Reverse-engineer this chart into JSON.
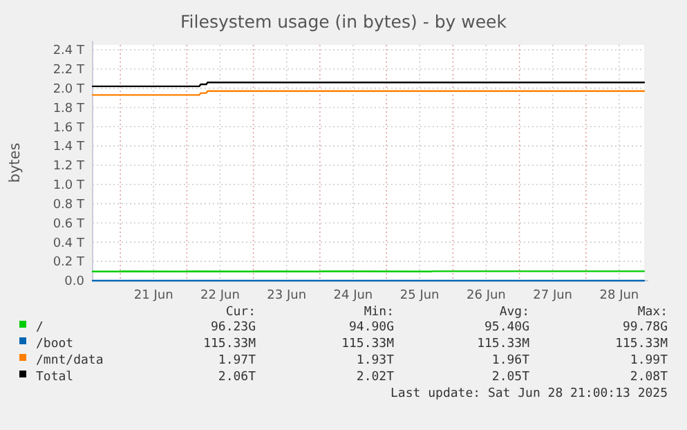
{
  "chart_data": {
    "type": "line",
    "title": "Filesystem usage (in bytes) - by week",
    "ylabel": "bytes",
    "xlim": [
      "2025-06-20T14:00",
      "2025-06-28T21:00"
    ],
    "xticks": [
      {
        "value": "2025-06-21T00:00",
        "label": null
      },
      {
        "value": "2025-06-21T12:00",
        "label": "21 Jun"
      },
      {
        "value": "2025-06-22T00:00",
        "label": null
      },
      {
        "value": "2025-06-22T12:00",
        "label": "22 Jun"
      },
      {
        "value": "2025-06-23T00:00",
        "label": null
      },
      {
        "value": "2025-06-23T12:00",
        "label": "23 Jun"
      },
      {
        "value": "2025-06-24T00:00",
        "label": null
      },
      {
        "value": "2025-06-24T12:00",
        "label": "24 Jun"
      },
      {
        "value": "2025-06-25T00:00",
        "label": null
      },
      {
        "value": "2025-06-25T12:00",
        "label": "25 Jun"
      },
      {
        "value": "2025-06-26T00:00",
        "label": null
      },
      {
        "value": "2025-06-26T12:00",
        "label": "26 Jun"
      },
      {
        "value": "2025-06-27T00:00",
        "label": null
      },
      {
        "value": "2025-06-27T12:00",
        "label": "27 Jun"
      },
      {
        "value": "2025-06-28T00:00",
        "label": null
      },
      {
        "value": "2025-06-28T12:00",
        "label": "28 Jun"
      }
    ],
    "ylim": [
      0,
      2.45
    ],
    "yticks": [
      {
        "value": 0,
        "label": "0.0"
      },
      {
        "value": 0.2,
        "label": "0.2 T"
      },
      {
        "value": 0.4,
        "label": "0.4 T"
      },
      {
        "value": 0.6,
        "label": "0.6 T"
      },
      {
        "value": 0.8,
        "label": "0.8 T"
      },
      {
        "value": 1.0,
        "label": "1.0 T"
      },
      {
        "value": 1.2,
        "label": "1.2 T"
      },
      {
        "value": 1.4,
        "label": "1.4 T"
      },
      {
        "value": 1.6,
        "label": "1.6 T"
      },
      {
        "value": 1.8,
        "label": "1.8 T"
      },
      {
        "value": 2.0,
        "label": "2.0 T"
      },
      {
        "value": 2.2,
        "label": "2.2 T"
      },
      {
        "value": 2.4,
        "label": "2.4 T"
      }
    ],
    "grid": true,
    "legend": "bottom",
    "marker": "none",
    "line_style": "solid",
    "series": [
      {
        "name": "/",
        "color": "#00cc00",
        "x": [
          "2025-06-20T14:00",
          "2025-06-21T00:00",
          "2025-06-21T01:00",
          "2025-06-22T00:00",
          "2025-06-22T01:00",
          "2025-06-23T00:00",
          "2025-06-23T01:00",
          "2025-06-24T00:00",
          "2025-06-24T01:00",
          "2025-06-25T16:00",
          "2025-06-25T17:00",
          "2025-06-28T21:00"
        ],
        "values": [
          0.095,
          0.095,
          0.097,
          0.095,
          0.097,
          0.095,
          0.097,
          0.095,
          0.098,
          0.095,
          0.098,
          0.098
        ]
      },
      {
        "name": "/boot",
        "color": "#0066b3",
        "x": [
          "2025-06-20T14:00",
          "2025-06-28T21:00"
        ],
        "values": [
          0.000115,
          0.000115
        ]
      },
      {
        "name": "/mnt/data",
        "color": "#ff8000",
        "x": [
          "2025-06-20T14:00",
          "2025-06-22T04:30",
          "2025-06-22T05:00",
          "2025-06-22T07:00",
          "2025-06-22T07:30",
          "2025-06-28T21:00"
        ],
        "values": [
          1.93,
          1.93,
          1.95,
          1.95,
          1.97,
          1.97
        ]
      },
      {
        "name": "Total",
        "color": "#000000",
        "x": [
          "2025-06-20T14:00",
          "2025-06-22T04:30",
          "2025-06-22T05:00",
          "2025-06-22T07:00",
          "2025-06-22T07:30",
          "2025-06-28T21:00"
        ],
        "values": [
          2.02,
          2.02,
          2.04,
          2.04,
          2.06,
          2.06
        ]
      }
    ],
    "annotations": [
      "Cur:",
      "Min:",
      "Avg:",
      "Max:",
      "96.23G",
      "94.90G",
      "95.40G",
      "99.78G",
      "115.33M",
      "115.33M",
      "115.33M",
      "115.33M",
      "1.97T",
      "1.93T",
      "1.96T",
      "1.99T",
      "2.06T",
      "2.02T",
      "2.05T",
      "2.08T",
      "Last update: Sat Jun 28 21:00:13 2025"
    ]
  }
}
